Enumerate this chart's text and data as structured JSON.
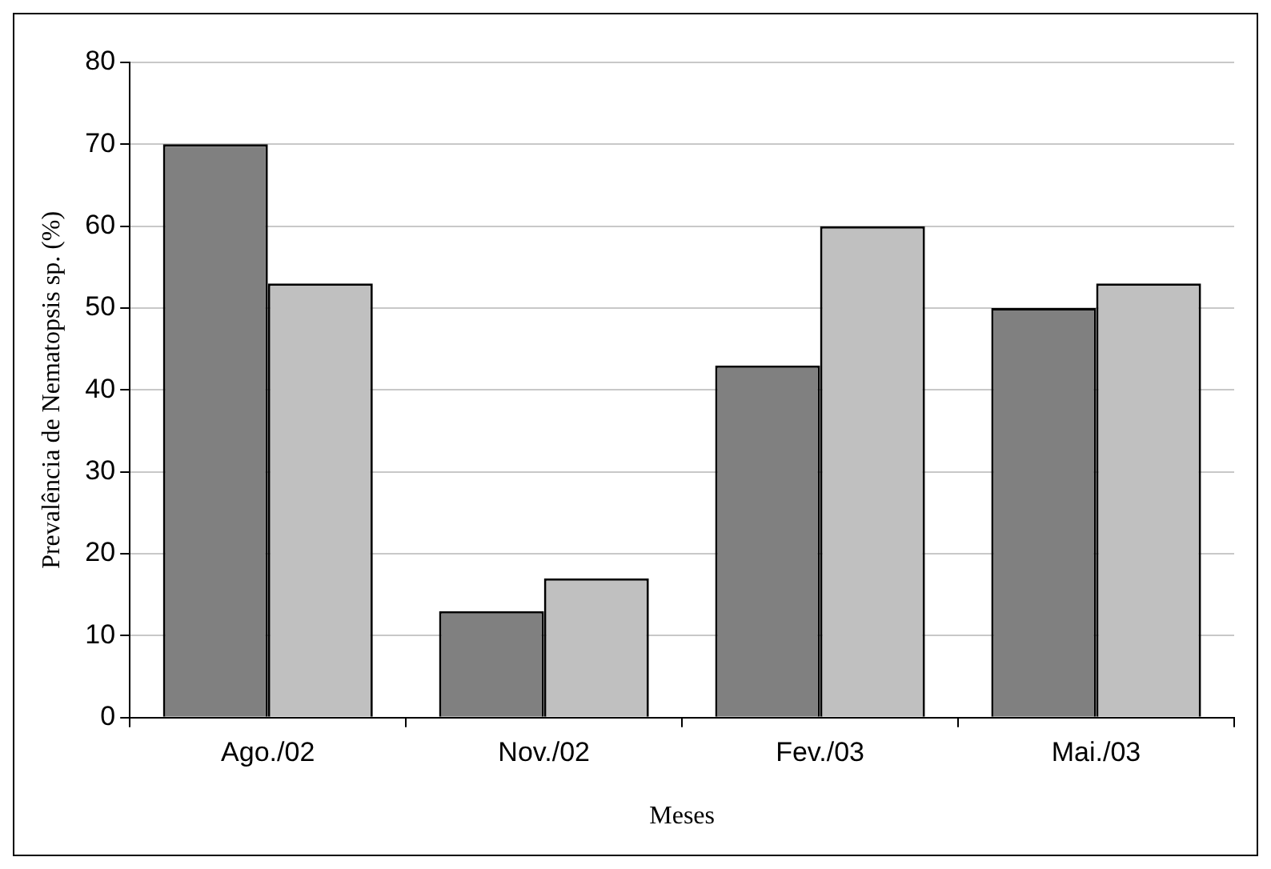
{
  "chart_data": {
    "type": "bar",
    "xlabel": "Meses",
    "ylabel": "Prevalência de Nematopsis sp. (%)",
    "categories": [
      "Ago./02",
      "Nov./02",
      "Fev./03",
      "Mai./03"
    ],
    "series": [
      {
        "color": "#808080",
        "values": [
          70,
          13,
          43,
          50
        ]
      },
      {
        "color": "#c0c0c0",
        "values": [
          53,
          17,
          60,
          53
        ]
      }
    ],
    "ylim": [
      0,
      80
    ],
    "yticks": [
      0,
      10,
      20,
      30,
      40,
      50,
      60,
      70,
      80
    ],
    "grid": "y",
    "legend": false
  }
}
